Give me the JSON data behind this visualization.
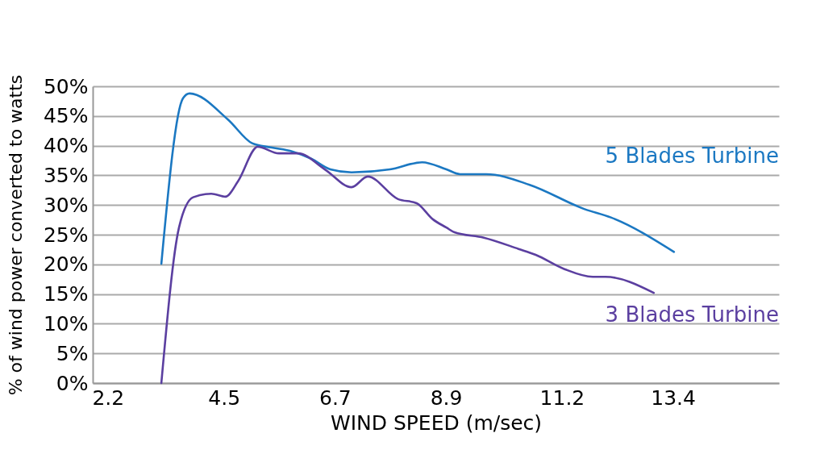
{
  "chart_data": {
    "type": "line",
    "xlabel": "WIND SPEED (m/sec)",
    "ylabel": "% of wind power converted to watts",
    "xlim": [
      1.9,
      15.5
    ],
    "xticks": [
      2.2,
      4.5,
      6.7,
      8.9,
      11.2,
      13.4
    ],
    "ylim": [
      0,
      50
    ],
    "yticks": [
      {
        "value": 0,
        "label": "0%"
      },
      {
        "value": 5,
        "label": "5%"
      },
      {
        "value": 10,
        "label": "10%"
      },
      {
        "value": 15,
        "label": "15%"
      },
      {
        "value": 20,
        "label": "20%"
      },
      {
        "value": 25,
        "label": "25%"
      },
      {
        "value": 30,
        "label": "30%"
      },
      {
        "value": 35,
        "label": "35%"
      },
      {
        "value": 40,
        "label": "40%"
      },
      {
        "value": 45,
        "label": "45%"
      },
      {
        "value": 50,
        "label": "50%"
      }
    ],
    "grid": "y",
    "legend": false,
    "marker": "none",
    "line_style": "solid",
    "series": [
      {
        "name": "5 Blades Turbine",
        "color": "#1b78c2",
        "x": [
          3.26,
          3.69,
          3.82,
          4.58,
          5.06,
          5.43,
          5.86,
          6.23,
          6.61,
          7.03,
          7.79,
          8.43,
          8.91,
          9.18,
          9.7,
          10.56,
          11.65,
          12.17,
          13.42
        ],
        "values": [
          20.1,
          48.0,
          48.8,
          44.4,
          40.4,
          39.7,
          39.0,
          37.8,
          36.0,
          35.5,
          36.0,
          37.2,
          36.0,
          35.2,
          35.2,
          33.4,
          29.3,
          27.9,
          22.1
        ]
      },
      {
        "name": "3 Blades Turbine",
        "color": "#5b3fa0",
        "x": [
          3.26,
          3.61,
          3.89,
          4.25,
          4.53,
          4.78,
          5.17,
          5.59,
          5.97,
          6.5,
          7.03,
          7.35,
          7.95,
          8.32,
          8.64,
          8.91,
          9.07,
          9.65,
          10.34,
          10.68,
          11.25,
          11.81,
          12.06,
          13.02
        ],
        "values": [
          0,
          26.2,
          31.3,
          31.9,
          31.4,
          34.0,
          39.8,
          38.7,
          38.7,
          36.0,
          33.0,
          34.8,
          31.0,
          30.3,
          27.6,
          26.2,
          25.4,
          24.5,
          22.6,
          21.6,
          19.2,
          17.9,
          17.9,
          15.2
        ]
      }
    ]
  }
}
